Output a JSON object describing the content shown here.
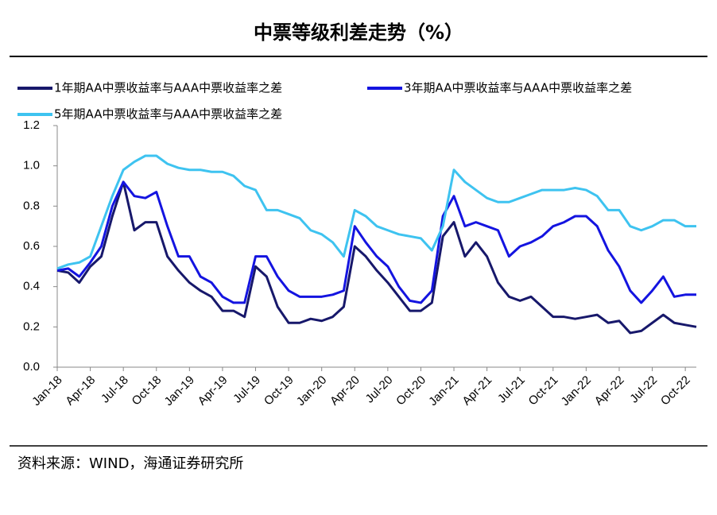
{
  "chart_data": {
    "type": "line",
    "title": "中票等级利差走势（%）",
    "source": "资料来源：WIND，海通证券研究所",
    "categories": [
      "Jan-18",
      null,
      null,
      "Apr-18",
      null,
      null,
      "Jul-18",
      null,
      null,
      "Oct-18",
      null,
      null,
      "Jan-19",
      null,
      null,
      "Apr-19",
      null,
      null,
      "Jul-19",
      null,
      null,
      "Oct-19",
      null,
      null,
      "Jan-20",
      null,
      null,
      "Apr-20",
      null,
      null,
      "Jul-20",
      null,
      null,
      "Oct-20",
      null,
      null,
      "Jan-21",
      null,
      null,
      "Apr-21",
      null,
      null,
      "Jul-21",
      null,
      null,
      "Oct-21",
      null,
      null,
      "Jan-22",
      null,
      null,
      "Apr-22",
      null,
      null,
      "Jul-22",
      null,
      null,
      "Oct-22",
      null
    ],
    "series": [
      {
        "name": "1年期AA中票收益率与AAA中票收益率之差",
        "color": "#17186b",
        "values": [
          0.48,
          0.47,
          0.42,
          0.5,
          0.55,
          0.75,
          0.92,
          0.68,
          0.72,
          0.72,
          0.55,
          0.48,
          0.42,
          0.38,
          0.35,
          0.28,
          0.28,
          0.25,
          0.5,
          0.45,
          0.3,
          0.22,
          0.22,
          0.24,
          0.23,
          0.25,
          0.3,
          0.6,
          0.55,
          0.48,
          0.42,
          0.35,
          0.28,
          0.28,
          0.32,
          0.65,
          0.72,
          0.55,
          0.62,
          0.55,
          0.42,
          0.35,
          0.33,
          0.35,
          0.3,
          0.25,
          0.25,
          0.24,
          0.25,
          0.26,
          0.22,
          0.23,
          0.17,
          0.18,
          0.22,
          0.26,
          0.22,
          0.21,
          0.2
        ]
      },
      {
        "name": "3年期AA中票收益率与AAA中票收益率之差",
        "color": "#1414e0",
        "values": [
          0.48,
          0.49,
          0.45,
          0.52,
          0.6,
          0.8,
          0.92,
          0.85,
          0.84,
          0.87,
          0.7,
          0.55,
          0.55,
          0.45,
          0.42,
          0.35,
          0.32,
          0.32,
          0.55,
          0.55,
          0.45,
          0.38,
          0.35,
          0.35,
          0.35,
          0.36,
          0.38,
          0.7,
          0.62,
          0.55,
          0.5,
          0.4,
          0.33,
          0.32,
          0.38,
          0.75,
          0.85,
          0.7,
          0.72,
          0.7,
          0.68,
          0.55,
          0.6,
          0.62,
          0.65,
          0.7,
          0.72,
          0.75,
          0.75,
          0.7,
          0.58,
          0.5,
          0.38,
          0.32,
          0.38,
          0.45,
          0.35,
          0.36,
          0.36
        ]
      },
      {
        "name": "5年期AA中票收益率与AAA中票收益率之差",
        "color": "#3ec3f0",
        "values": [
          0.49,
          0.51,
          0.52,
          0.55,
          0.7,
          0.85,
          0.98,
          1.02,
          1.05,
          1.05,
          1.01,
          0.99,
          0.98,
          0.98,
          0.97,
          0.97,
          0.95,
          0.9,
          0.88,
          0.78,
          0.78,
          0.76,
          0.74,
          0.68,
          0.66,
          0.62,
          0.55,
          0.78,
          0.75,
          0.7,
          0.68,
          0.66,
          0.65,
          0.64,
          0.58,
          0.7,
          0.98,
          0.92,
          0.88,
          0.84,
          0.82,
          0.82,
          0.84,
          0.86,
          0.88,
          0.88,
          0.88,
          0.89,
          0.88,
          0.85,
          0.78,
          0.78,
          0.7,
          0.68,
          0.7,
          0.73,
          0.73,
          0.7,
          0.7
        ]
      }
    ],
    "ylim": [
      0,
      1.2
    ],
    "yticks": [
      {
        "value": 0,
        "label": "0.0"
      },
      {
        "value": 0.2,
        "label": "0.2"
      },
      {
        "value": 0.4,
        "label": "0.4"
      },
      {
        "value": 0.6,
        "label": "0.6"
      },
      {
        "value": 0.8,
        "label": "0.8"
      },
      {
        "value": 1,
        "label": "1.0"
      },
      {
        "value": 1.2,
        "label": "1.2"
      }
    ]
  }
}
